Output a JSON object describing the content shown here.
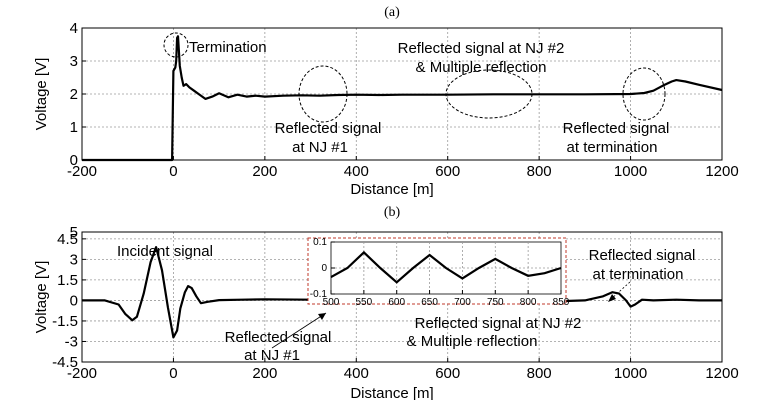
{
  "chart_data": [
    {
      "type": "line",
      "title": "(a)",
      "xlabel": "Distance [m]",
      "ylabel": "Voltage [V]",
      "xlim": [
        -200,
        1200
      ],
      "ylim": [
        0,
        4
      ],
      "xticks": [
        "-200",
        "0",
        "200",
        "400",
        "600",
        "800",
        "1000",
        "1200"
      ],
      "yticks": [
        "0",
        "1",
        "2",
        "3",
        "4"
      ],
      "grid": true,
      "series": [
        {
          "x": [
            -200,
            -10,
            -3,
            0,
            2,
            4,
            6,
            8,
            10,
            12,
            14,
            18,
            22,
            28,
            35,
            45,
            55,
            70,
            85,
            100,
            120,
            140,
            160,
            180,
            200,
            240,
            280,
            320,
            360,
            400,
            450,
            500,
            600,
            700,
            800,
            900,
            1000,
            1030,
            1050,
            1070,
            1090,
            1100,
            1120,
            1150,
            1200
          ],
          "y": [
            0,
            0,
            0,
            2.7,
            2.75,
            2.8,
            3.0,
            3.7,
            3.75,
            3.3,
            2.85,
            2.5,
            2.25,
            2.3,
            2.2,
            2.1,
            2.0,
            1.85,
            1.92,
            2.02,
            1.9,
            1.98,
            1.92,
            1.95,
            1.92,
            1.95,
            1.96,
            1.95,
            1.97,
            1.98,
            1.97,
            1.98,
            1.98,
            1.99,
            1.99,
            1.99,
            2.0,
            2.03,
            2.1,
            2.25,
            2.38,
            2.42,
            2.38,
            2.28,
            2.12
          ]
        }
      ],
      "annotations": [
        "Termination",
        "Reflected signal at NJ #2",
        "& Multiple reflection",
        "Reflected signal",
        "at NJ #1",
        "Reflected signal",
        "at termination"
      ]
    },
    {
      "type": "line",
      "title": "(b)",
      "xlabel": "Distance [m]",
      "ylabel": "Voltage [V]",
      "xlim": [
        -200,
        1200
      ],
      "ylim": [
        -4.5,
        5
      ],
      "xticks": [
        "-200",
        "0",
        "200",
        "400",
        "600",
        "800",
        "1000",
        "1200"
      ],
      "yticks": [
        "-4.5",
        "-3",
        "-1.5",
        "0",
        "1.5",
        "3",
        "4.5",
        "5"
      ],
      "grid": true,
      "series": [
        {
          "x": [
            -200,
            -150,
            -120,
            -105,
            -90,
            -80,
            -65,
            -50,
            -38,
            -25,
            -12,
            0,
            8,
            15,
            25,
            32,
            40,
            50,
            60,
            75,
            100,
            150,
            200,
            300,
            400,
            500,
            600,
            700,
            800,
            850,
            900,
            940,
            960,
            975,
            990,
            1000,
            1010,
            1025,
            1050,
            1100,
            1150,
            1200
          ],
          "y": [
            0,
            0,
            -0.3,
            -1.0,
            -1.45,
            -1.2,
            0.5,
            2.8,
            3.9,
            2.2,
            -0.5,
            -2.7,
            -2.2,
            -0.6,
            0.6,
            1.05,
            0.9,
            0.3,
            -0.2,
            -0.1,
            0.02,
            0.05,
            0.08,
            0.05,
            0.04,
            0.0,
            -0.05,
            0.05,
            0.0,
            -0.05,
            0.0,
            0.3,
            0.6,
            0.5,
            0.0,
            -0.45,
            -0.3,
            0.05,
            0.0,
            0.05,
            0.0,
            0.0
          ]
        }
      ],
      "annotations": [
        "Incident signal",
        "Reflected signal",
        "at NJ #1",
        "Reflected signal at NJ #2",
        "& Multiple reflection",
        "Reflected signal",
        "at termination"
      ],
      "inset": {
        "xlim": [
          500,
          850
        ],
        "ylim": [
          -0.1,
          0.1
        ],
        "xticks": [
          "500",
          "550",
          "600",
          "650",
          "700",
          "750",
          "800",
          "850"
        ],
        "yticks": [
          "0.1",
          "0",
          "-0.1"
        ],
        "series": [
          {
            "x": [
              500,
              525,
              550,
              575,
              600,
              625,
              650,
              675,
              700,
              725,
              750,
              775,
              800,
              825,
              850
            ],
            "y": [
              -0.035,
              0.0,
              0.06,
              0.0,
              -0.055,
              0.0,
              0.05,
              0.0,
              -0.04,
              0.0,
              0.035,
              0.0,
              -0.03,
              -0.02,
              0.0
            ]
          }
        ]
      }
    }
  ]
}
